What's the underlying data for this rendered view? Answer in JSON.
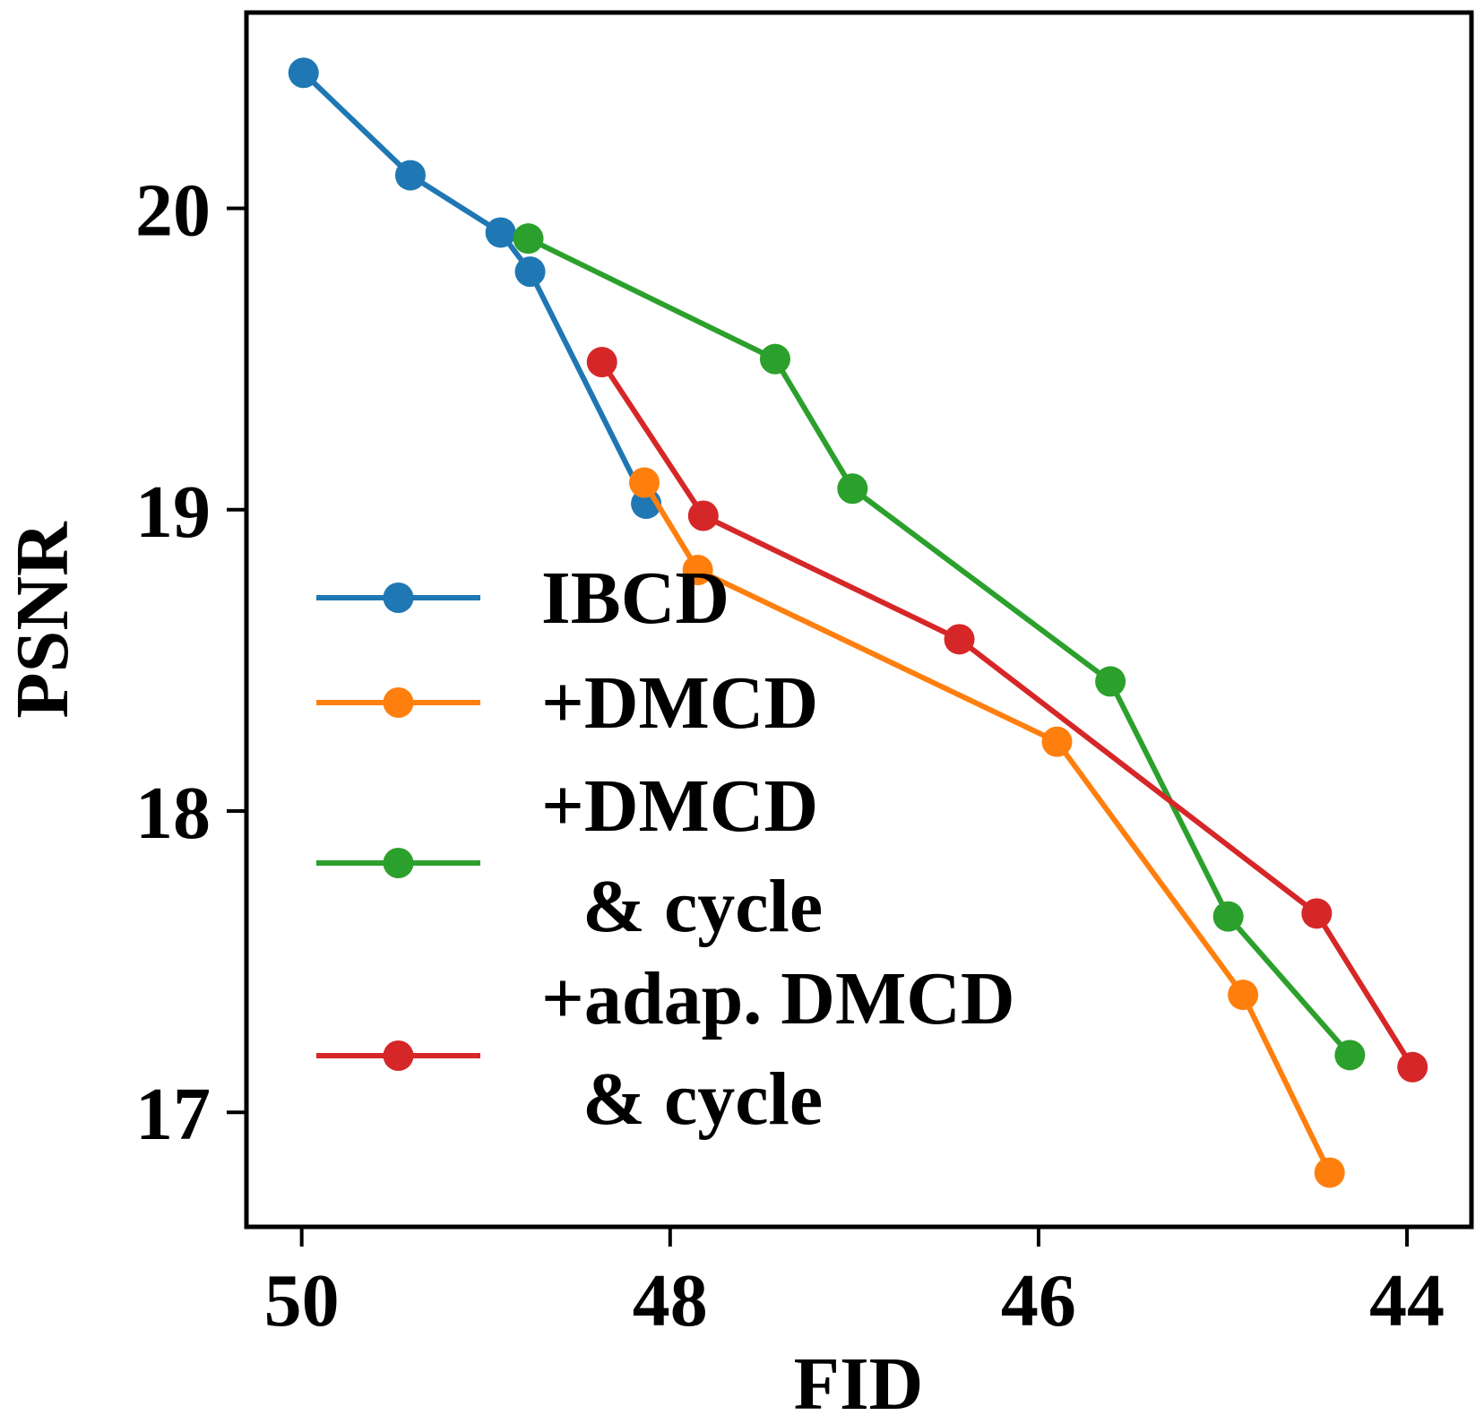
{
  "chart_data": {
    "type": "line",
    "title": "",
    "xlabel": "FID",
    "ylabel": "PSNR",
    "xlim": [
      50.3,
      43.65
    ],
    "ylim": [
      16.62,
      20.65
    ],
    "x_inverted": true,
    "xticks": [
      50,
      48,
      46,
      44
    ],
    "xtick_labels": [
      "50",
      "48",
      "46",
      "44"
    ],
    "yticks": [
      17,
      18,
      19,
      20
    ],
    "ytick_labels": [
      "17",
      "18",
      "19",
      "20"
    ],
    "grid": false,
    "legend_position": "lower-left",
    "series": [
      {
        "name": "IBCD",
        "label_lines": [
          "IBCD"
        ],
        "color": "#1f77b4",
        "x": [
          49.99,
          49.41,
          48.92,
          48.76,
          48.13
        ],
        "y": [
          20.45,
          20.11,
          19.92,
          19.79,
          19.02
        ]
      },
      {
        "name": "+DMCD",
        "label_lines": [
          "+DMCD"
        ],
        "color": "#ff7f0e",
        "x": [
          48.14,
          47.85,
          45.9,
          44.89,
          44.42
        ],
        "y": [
          19.09,
          18.8,
          18.23,
          17.39,
          16.8
        ]
      },
      {
        "name": "+DMCD & cycle",
        "label_lines": [
          "+DMCD",
          "& cycle"
        ],
        "color": "#2ca02c",
        "x": [
          48.77,
          47.43,
          47.01,
          45.61,
          44.97,
          44.31
        ],
        "y": [
          19.9,
          19.5,
          19.07,
          18.43,
          17.65,
          17.19
        ]
      },
      {
        "name": "+adap. DMCD & cycle",
        "label_lines": [
          "+adap. DMCD",
          "& cycle"
        ],
        "color": "#d62728",
        "x": [
          48.37,
          47.82,
          46.43,
          44.49,
          43.97
        ],
        "y": [
          19.49,
          18.98,
          18.57,
          17.66,
          17.15
        ]
      }
    ]
  }
}
